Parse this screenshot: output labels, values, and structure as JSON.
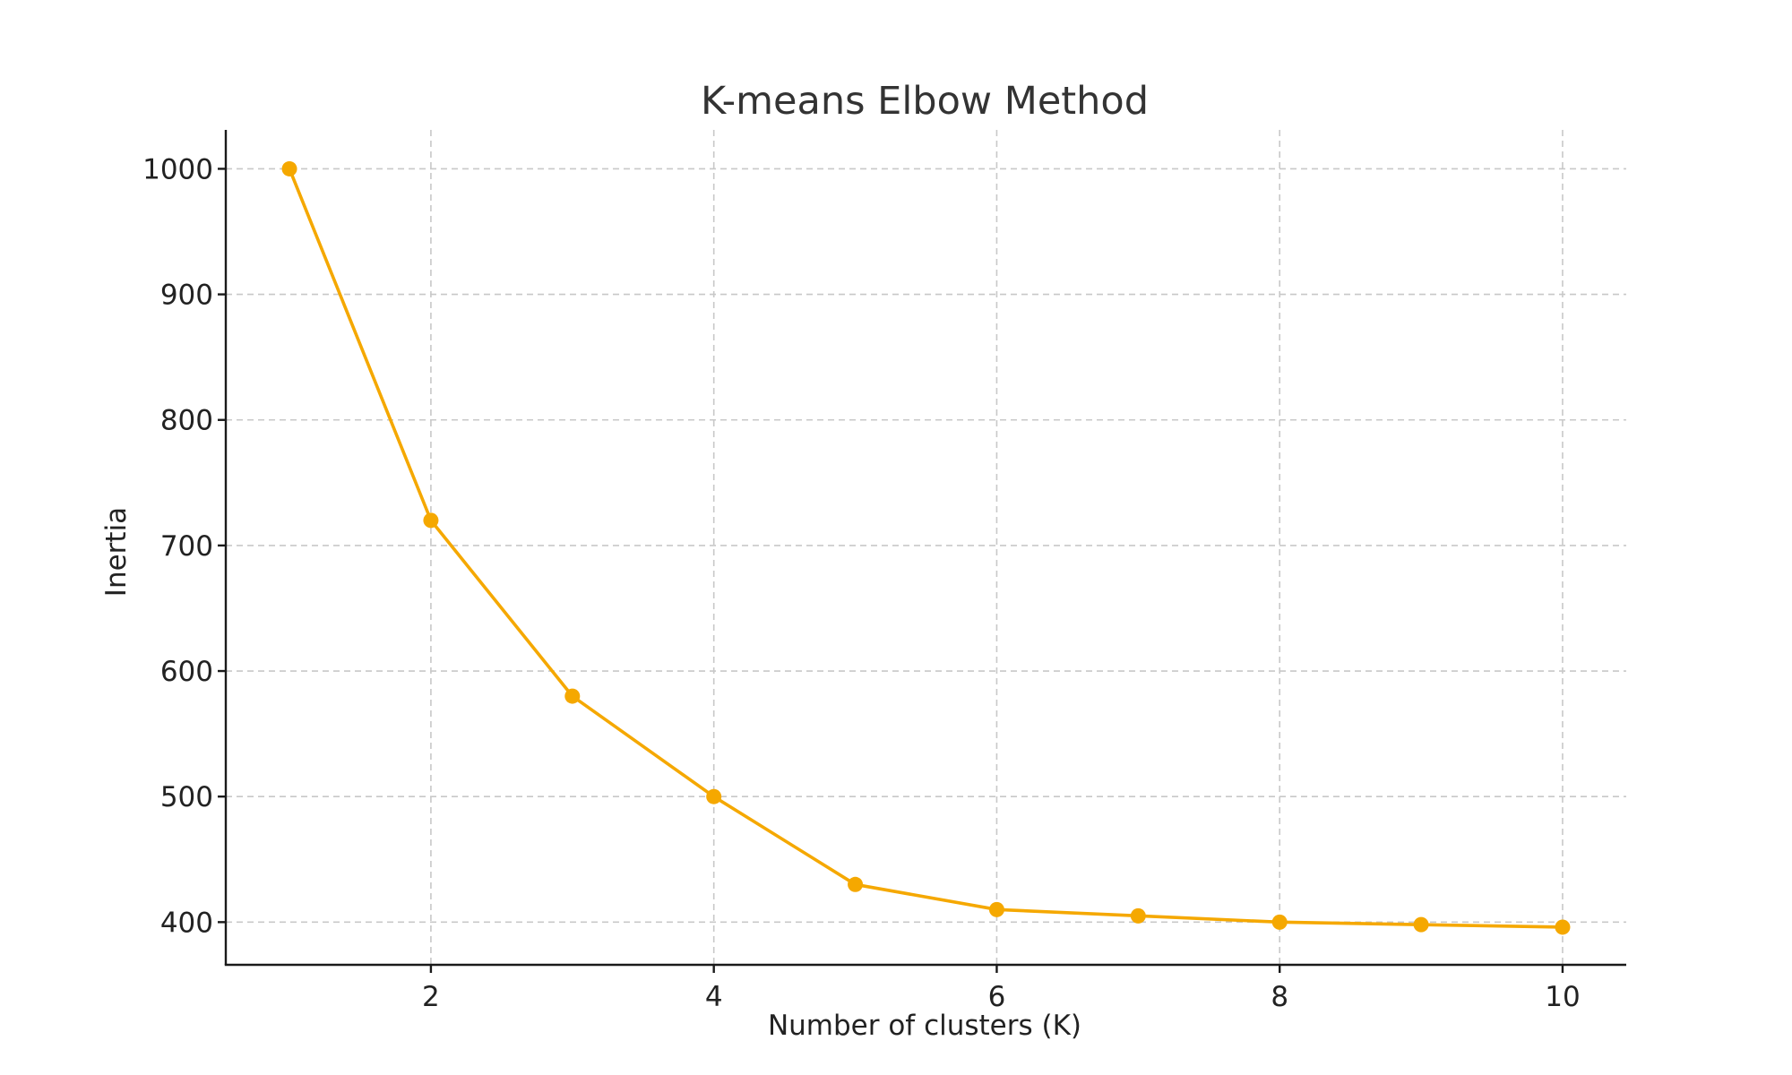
{
  "chart_data": {
    "type": "line",
    "title": "K-means Elbow Method",
    "xlabel": "Number of clusters (K)",
    "ylabel": "Inertia",
    "x": [
      1,
      2,
      3,
      4,
      5,
      6,
      7,
      8,
      9,
      10
    ],
    "series": [
      {
        "values": [
          1000,
          720,
          580,
          500,
          430,
          410,
          405,
          400,
          398,
          396
        ],
        "color": "#F5A800",
        "marker": "circle"
      }
    ],
    "xlim": [
      0.55,
      10.45
    ],
    "ylim": [
      366,
      1031
    ],
    "xticks": [
      2,
      4,
      6,
      8,
      10
    ],
    "yticks": [
      400,
      500,
      600,
      700,
      800,
      900,
      1000
    ],
    "grid": true,
    "grid_style": "dashed",
    "legend": "none"
  }
}
